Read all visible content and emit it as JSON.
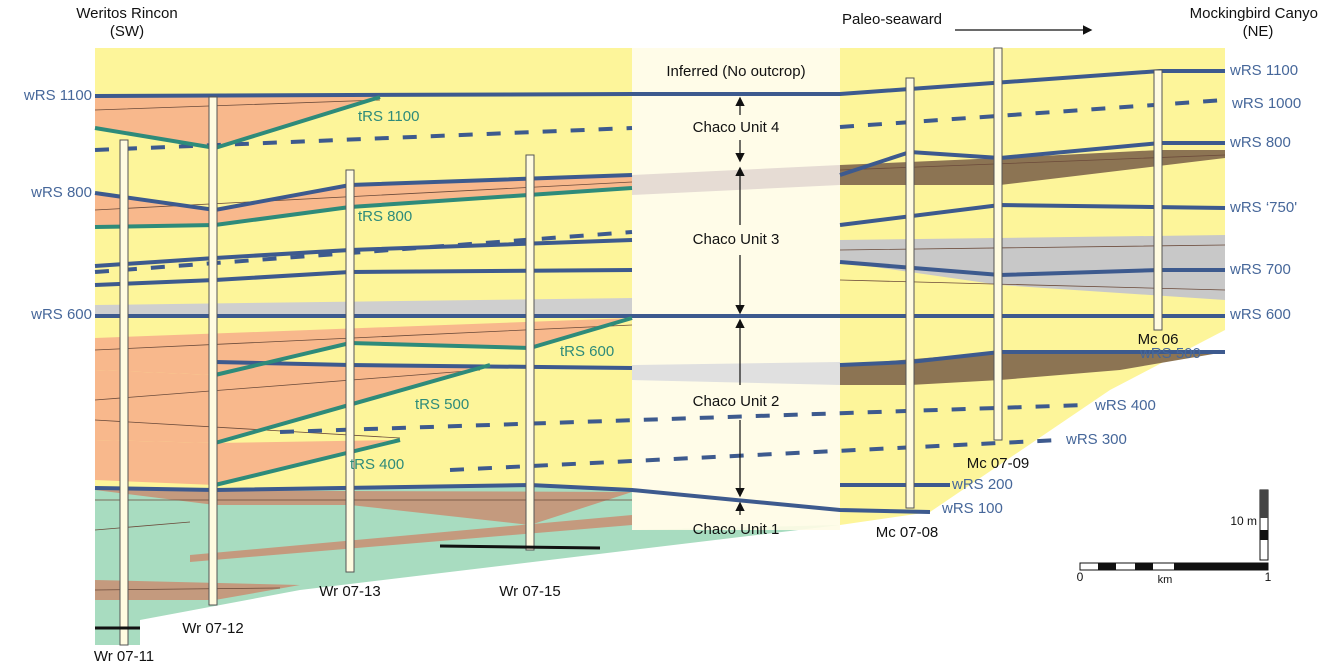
{
  "header": {
    "left_well": "Weritos Rincon",
    "left_dir": "(SW)",
    "right_well": "Mockingbird Canyon",
    "right_dir": "(NE)",
    "direction": "Paleo-seaward",
    "gap": "Inferred (No outcrop)"
  },
  "units": [
    "Chaco Unit 4",
    "Chaco Unit 3",
    "Chaco Unit 2",
    "Chaco Unit 1"
  ],
  "left_surfaces": [
    "wRS 1100",
    "wRS 800",
    "wRS 600"
  ],
  "right_surfaces": [
    "wRS 1100",
    "wRS 1000",
    "wRS 800",
    "wRS ‘750'",
    "wRS 700",
    "wRS 600",
    "wRS 500",
    "wRS 400",
    "wRS 300",
    "wRS 200",
    "wRS 100"
  ],
  "transgressive_surfaces": [
    "tRS 1100",
    "tRS 800",
    "tRS 600",
    "tRS 500",
    "tRS 400"
  ],
  "wells": [
    "Wr 07-11",
    "Wr 07-12",
    "Wr 07-13",
    "Wr 07-15",
    "Mc 07-08",
    "Mc 07-09",
    "Mc 06"
  ],
  "scale": {
    "vertical": "10 m",
    "km_start": "0",
    "km_unit": "km",
    "km_end": "1"
  }
}
